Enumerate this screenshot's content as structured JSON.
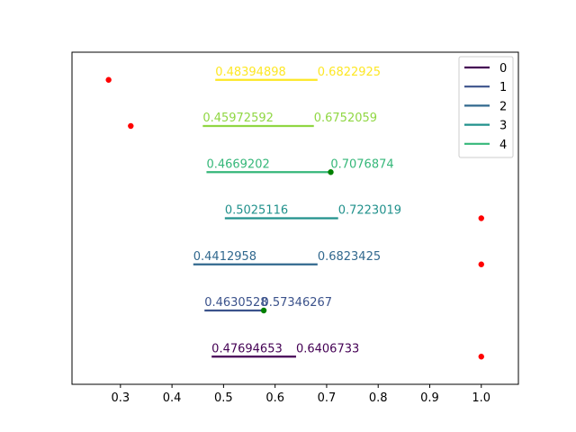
{
  "chart_data": {
    "type": "line",
    "title": "",
    "xlabel": "",
    "ylabel": "",
    "xlim": [
      0.206,
      1.072
    ],
    "ylim": [
      -0.6,
      6.6
    ],
    "x_ticks": [
      "0.3",
      "0.4",
      "0.5",
      "0.6",
      "0.7",
      "0.8",
      "0.9",
      "1.0"
    ],
    "x_tick_values": [
      0.3,
      0.4,
      0.5,
      0.6,
      0.7,
      0.8,
      0.9,
      1.0
    ],
    "y_ticks_visible": false,
    "grid": false,
    "legend_position": "top-right",
    "legend": [
      "0",
      "1",
      "2",
      "3",
      "4"
    ],
    "segments": [
      {
        "y": 0,
        "start": 0.47694653,
        "end": 0.6406733,
        "start_label": "0.47694653",
        "end_label": "0.6406733",
        "color": "#440154"
      },
      {
        "y": 1,
        "start": 0.4630528,
        "end": 0.57346267,
        "start_label": "0.4630528",
        "end_label": "0.57346267",
        "color": "#3b528b"
      },
      {
        "y": 2,
        "start": 0.4412958,
        "end": 0.6823425,
        "start_label": "0.4412958",
        "end_label": "0.6823425",
        "color": "#31688e"
      },
      {
        "y": 3,
        "start": 0.5025116,
        "end": 0.7223019,
        "start_label": "0.5025116",
        "end_label": "0.7223019",
        "color": "#21918c"
      },
      {
        "y": 4,
        "start": 0.4669202,
        "end": 0.7076874,
        "start_label": "0.4669202",
        "end_label": "0.7076874",
        "color": "#35b779"
      },
      {
        "y": 5,
        "start": 0.45972592,
        "end": 0.6752059,
        "start_label": "0.45972592",
        "end_label": "0.6752059",
        "color": "#90d743"
      },
      {
        "y": 6,
        "start": 0.48394898,
        "end": 0.6822925,
        "start_label": "0.48394898",
        "end_label": "0.6822925",
        "color": "#fde725"
      }
    ],
    "legend_colors": [
      "#440154",
      "#3b528b",
      "#31688e",
      "#21918c",
      "#35b779"
    ],
    "points": [
      {
        "x": 1.0,
        "y": 0,
        "color": "#ff0000"
      },
      {
        "x": 0.578,
        "y": 1,
        "color": "#008000"
      },
      {
        "x": 1.0,
        "y": 2,
        "color": "#ff0000"
      },
      {
        "x": 1.0,
        "y": 3,
        "color": "#ff0000"
      },
      {
        "x": 0.708,
        "y": 4,
        "color": "#008000"
      },
      {
        "x": 0.32,
        "y": 5,
        "color": "#ff0000"
      },
      {
        "x": 0.277,
        "y": 6,
        "color": "#ff0000"
      }
    ]
  }
}
